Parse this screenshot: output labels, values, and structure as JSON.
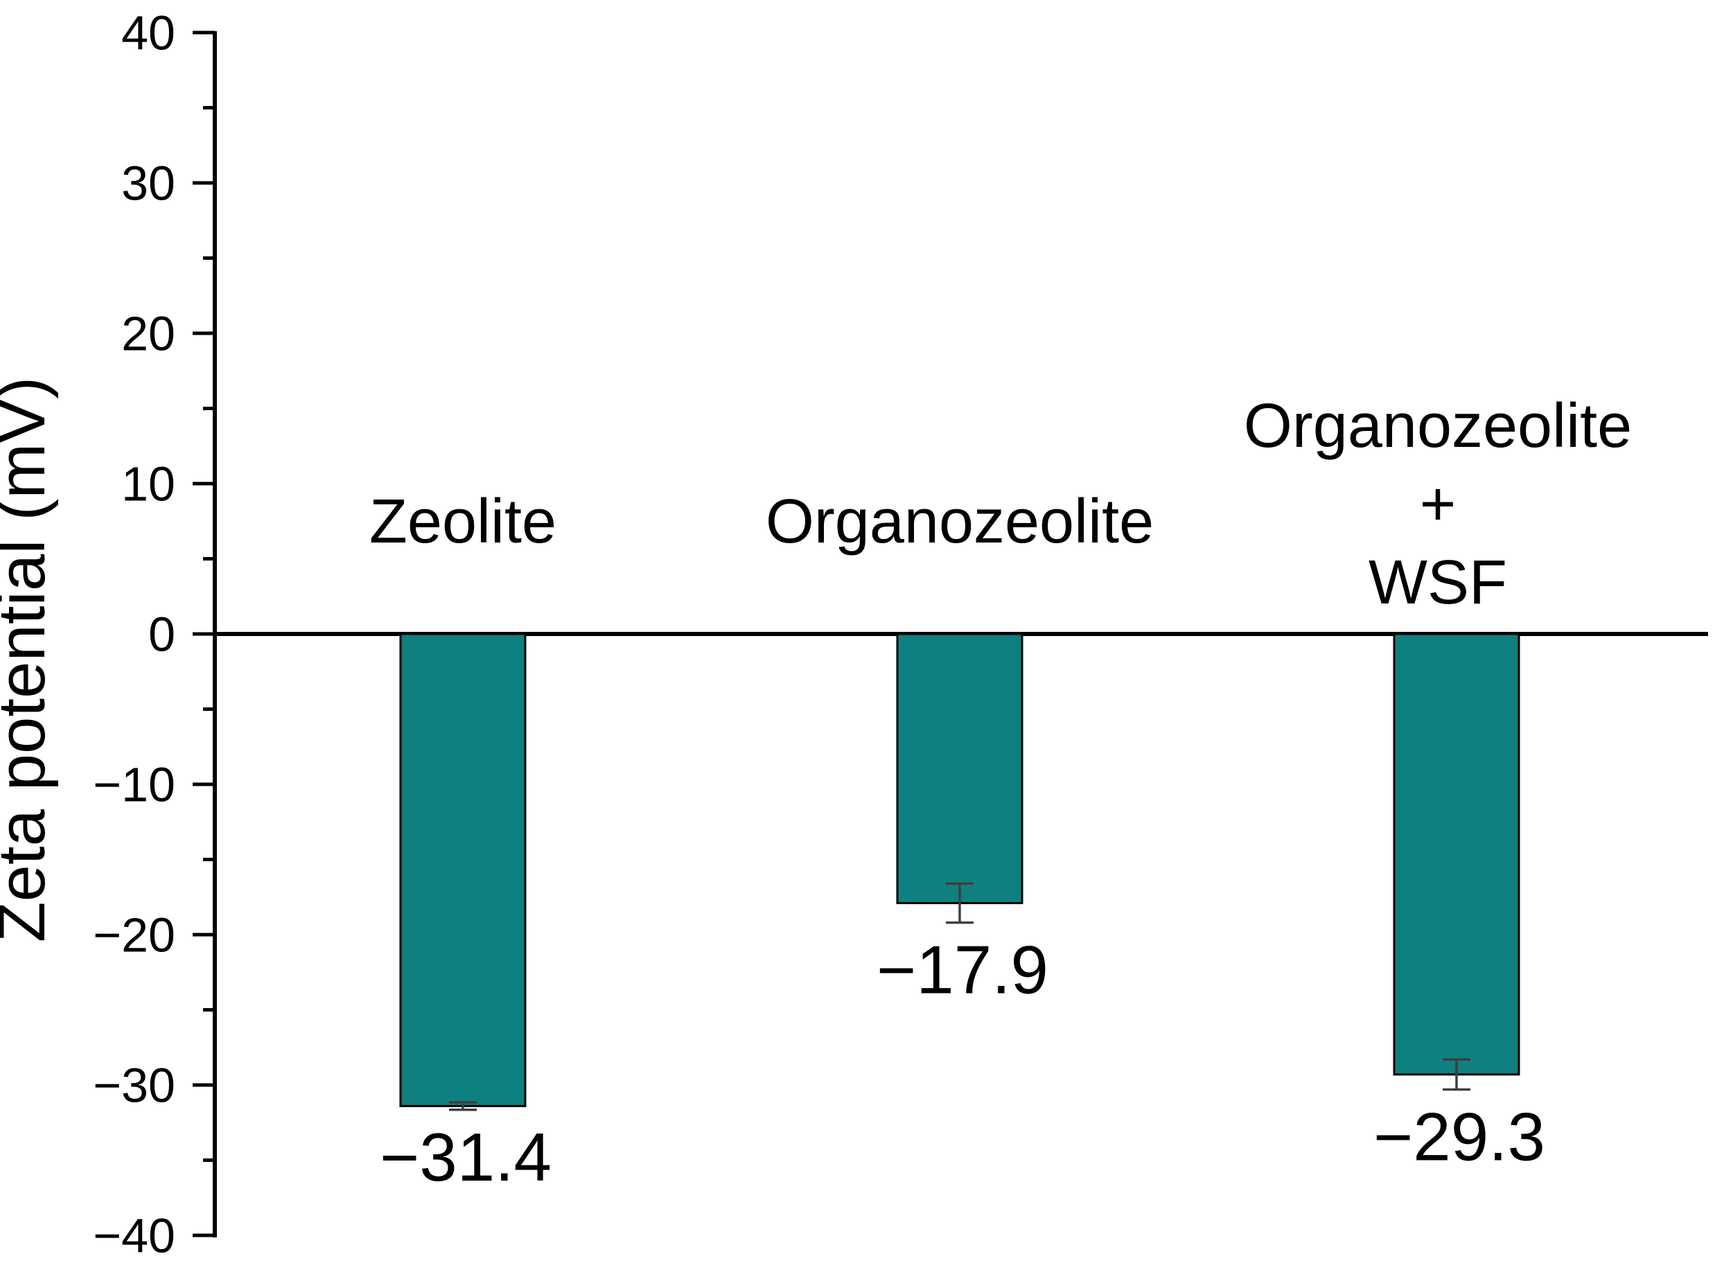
{
  "figure": {
    "background": "#ffffff"
  },
  "chart_data": {
    "type": "bar",
    "title": "",
    "xlabel": "",
    "ylabel": "Zeta potential (mV)",
    "ylim": [
      -40,
      40
    ],
    "grid": false,
    "legend": "none",
    "bar_color": "#0e8080",
    "bar_edge_color": "#000000",
    "error_bar_color": "#3f3f3f",
    "axis_color": "#000000",
    "y_major_ticks": [
      40,
      30,
      20,
      10,
      0,
      -10,
      -20,
      -30,
      -40
    ],
    "y_tick_labels": [
      "40",
      "30",
      "20",
      "10",
      "0",
      "−10",
      "−20",
      "−30",
      "−40"
    ],
    "y_minor_ticks": [
      35,
      25,
      15,
      5,
      -5,
      -15,
      -25,
      -35
    ],
    "categories": [
      "Zeolite",
      "Organozeolite",
      "Organozeolite + WSF"
    ],
    "category_label_lines": [
      [
        "Zeolite"
      ],
      [
        "Organozeolite"
      ],
      [
        "Organozeolite",
        "+",
        "WSF"
      ]
    ],
    "values": [
      -31.4,
      -17.9,
      -29.3
    ],
    "value_labels": [
      "−31.4",
      "−17.9",
      "−29.3"
    ],
    "errors": [
      0.25,
      1.3,
      1.0
    ]
  }
}
